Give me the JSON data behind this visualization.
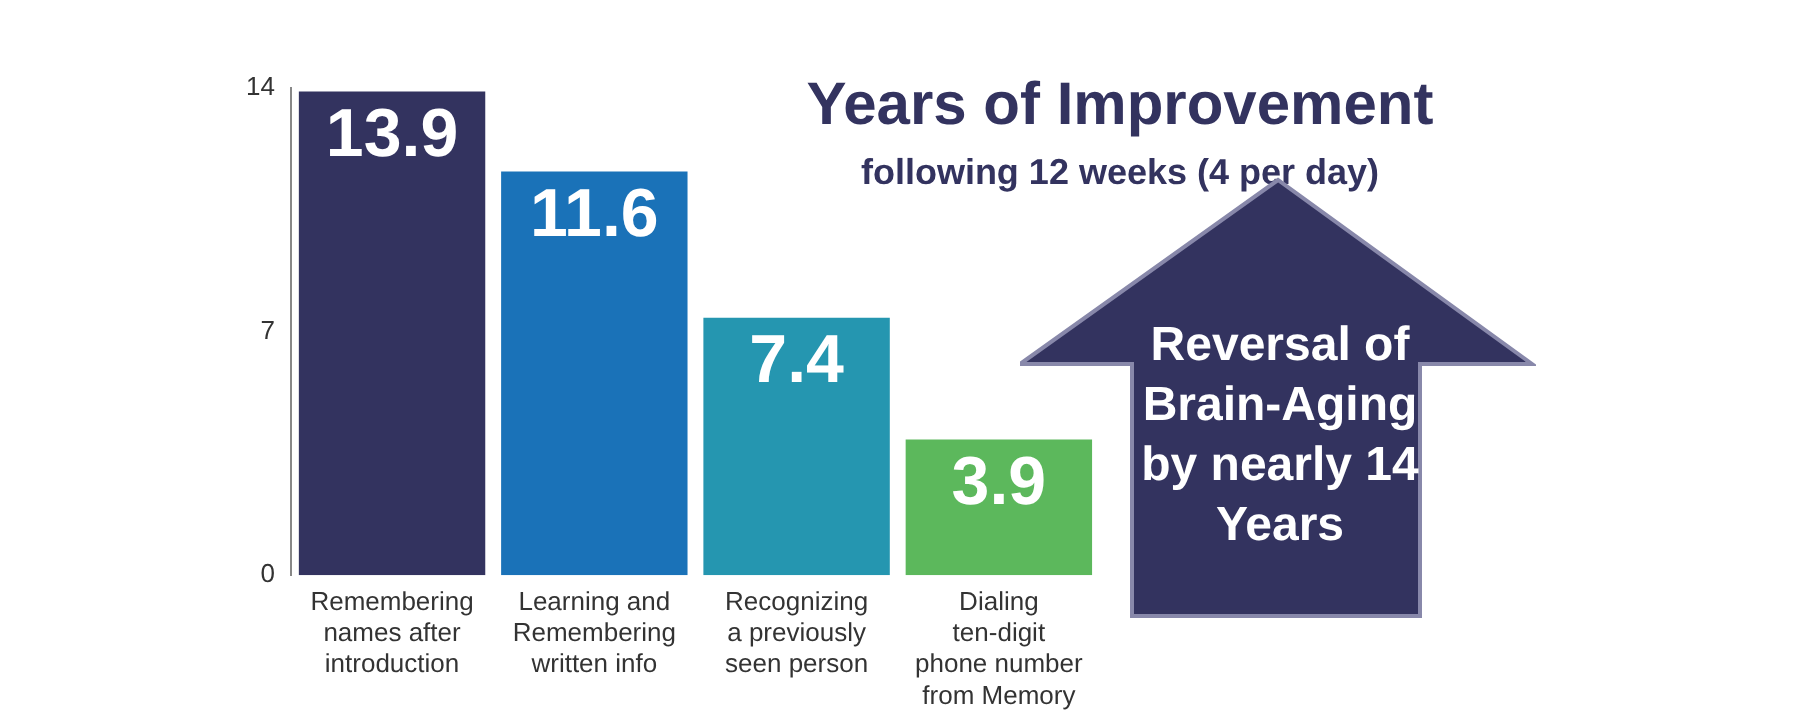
{
  "chart_data": {
    "type": "bar",
    "title": "Years of Improvement",
    "subtitle": "following 12 weeks (4 per day)",
    "categories": [
      "Remembering names after introduction",
      "Learning and Remembering written info",
      "Recognizing a previously seen person",
      "Dialing ten-digit phone number from Memory"
    ],
    "values": [
      13.9,
      11.6,
      7.4,
      3.9
    ],
    "colors": [
      "#33335f",
      "#1a72b8",
      "#2596b0",
      "#5cb85c"
    ],
    "ylim": [
      0,
      14
    ],
    "yticks": [
      0,
      7,
      14
    ],
    "grid": false,
    "legend": false,
    "data_labels": true,
    "annotations": [
      "Reversal of Brain-Aging by nearly 14 Years"
    ]
  }
}
